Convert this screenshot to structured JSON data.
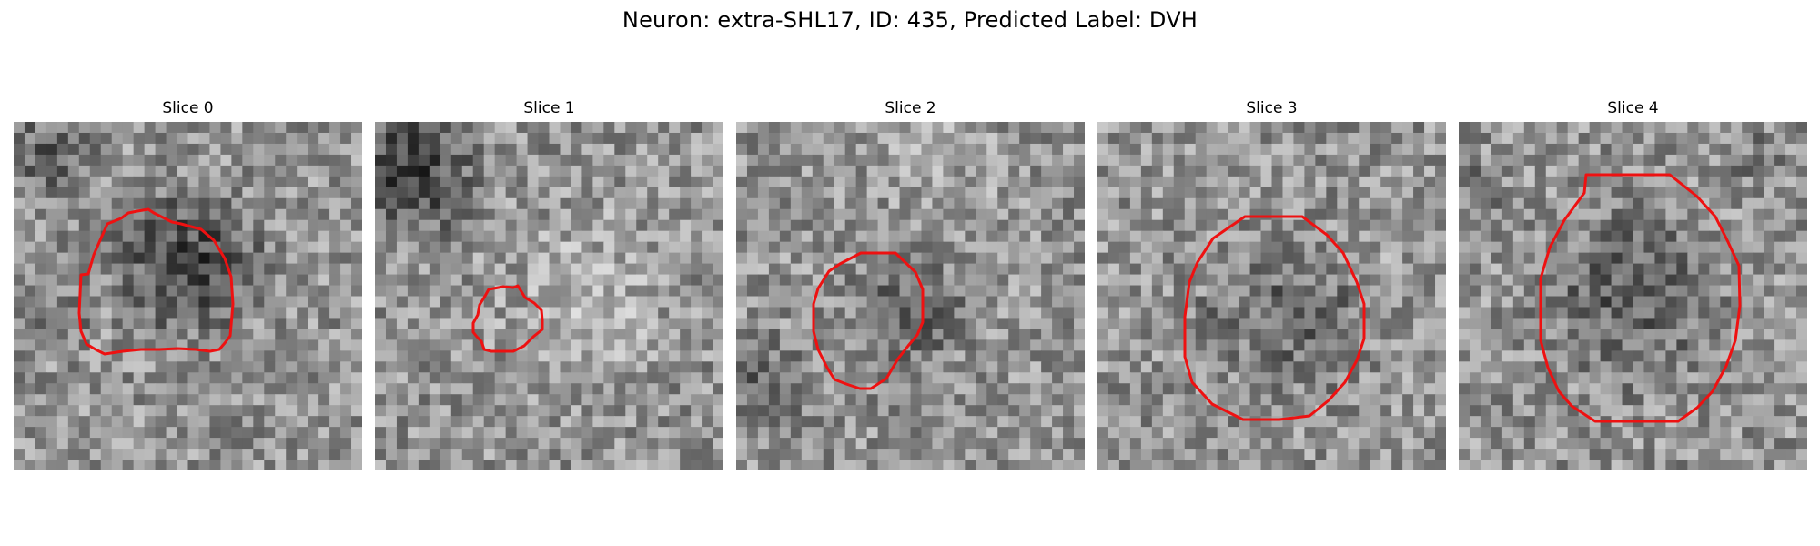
{
  "figure": {
    "title": "Neuron: extra-SHL17, ID: 435, Predicted Label: DVH",
    "contour_color": "#ee1111"
  },
  "slices": [
    {
      "label": "Slice 0"
    },
    {
      "label": "Slice 1"
    },
    {
      "label": "Slice 2"
    },
    {
      "label": "Slice 3"
    },
    {
      "label": "Slice 4"
    }
  ]
}
